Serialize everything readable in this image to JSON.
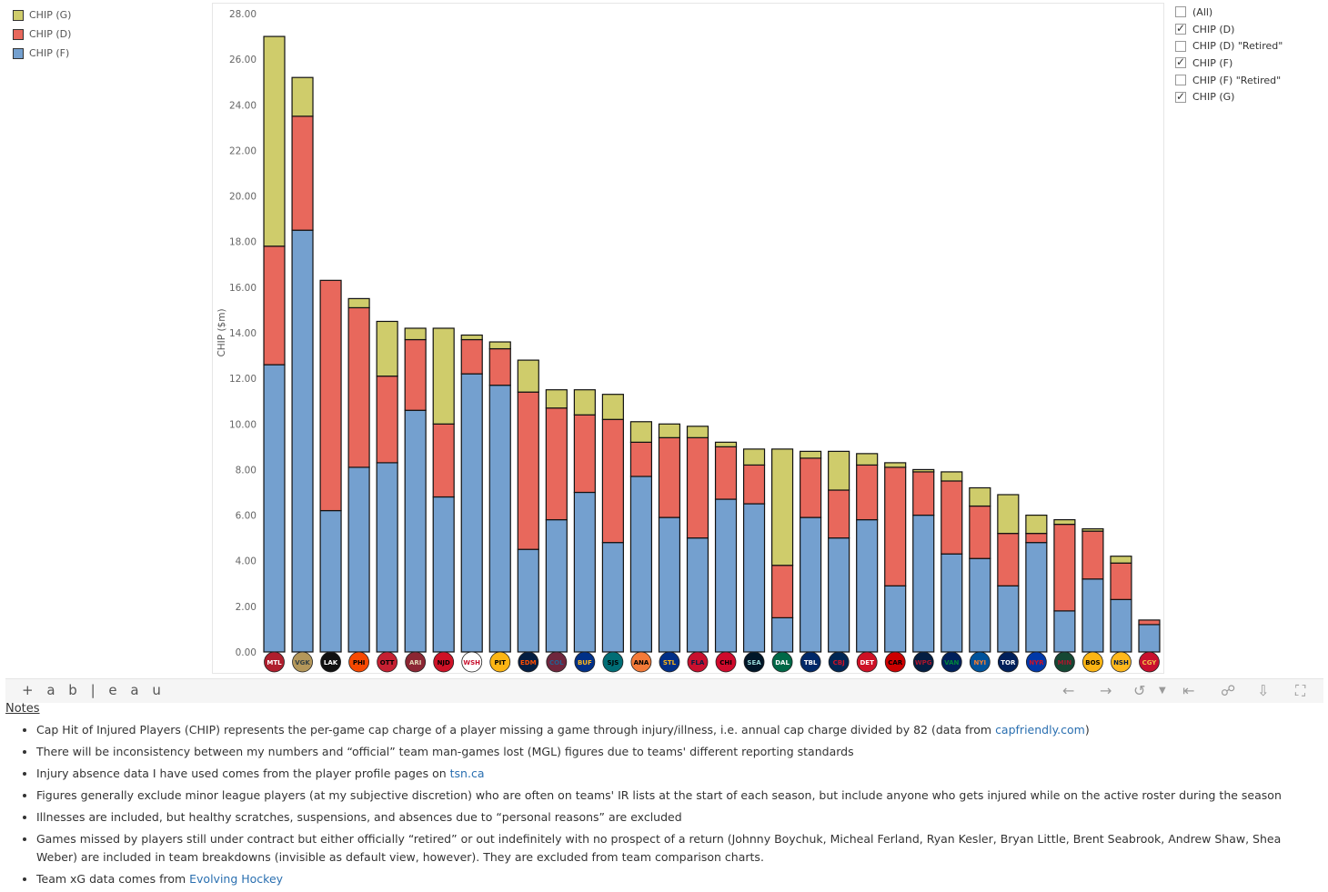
{
  "legend": [
    {
      "label": "CHIP (G)",
      "color": "#cfcc6b"
    },
    {
      "label": "CHIP (D)",
      "color": "#e8685c"
    },
    {
      "label": "CHIP (F)",
      "color": "#74a0cf"
    }
  ],
  "filter": [
    {
      "label": "(All)",
      "checked": false
    },
    {
      "label": "CHIP (D)",
      "checked": true
    },
    {
      "label": "CHIP (D) \"Retired\"",
      "checked": false
    },
    {
      "label": "CHIP (F)",
      "checked": true
    },
    {
      "label": "CHIP (F) \"Retired\"",
      "checked": false
    },
    {
      "label": "CHIP (G)",
      "checked": true
    }
  ],
  "chart_data": {
    "type": "bar",
    "stacked": true,
    "ylabel": "CHIP ($m)",
    "ylim": [
      0,
      28
    ],
    "yticks": [
      "0.00",
      "2.00",
      "4.00",
      "6.00",
      "8.00",
      "10.00",
      "12.00",
      "14.00",
      "16.00",
      "18.00",
      "20.00",
      "22.00",
      "24.00",
      "26.00",
      "28.00"
    ],
    "categories": [
      "Canadiens",
      "Golden Knights",
      "Kings",
      "Flyers",
      "Senators",
      "Coyotes",
      "Devils",
      "Capitals",
      "Penguins",
      "Oilers",
      "Avalanche",
      "Sabres",
      "Sharks",
      "Ducks",
      "Blues",
      "Panthers",
      "Blackhawks",
      "Kraken",
      "Stars",
      "Lightning",
      "Blue Jackets",
      "Red Wings",
      "Hurricanes",
      "Jets",
      "Canucks",
      "Islanders",
      "Maple Leafs",
      "Rangers",
      "Wild",
      "Bruins",
      "Predators",
      "Flames"
    ],
    "series": [
      {
        "name": "CHIP (F)",
        "color": "#74a0cf",
        "values": [
          12.6,
          18.5,
          6.2,
          8.1,
          8.3,
          10.6,
          6.8,
          12.2,
          11.7,
          4.5,
          5.8,
          7.0,
          4.8,
          7.7,
          5.9,
          5.0,
          6.7,
          6.5,
          1.5,
          5.9,
          5.0,
          5.8,
          2.9,
          6.0,
          4.3,
          4.1,
          2.9,
          4.8,
          1.8,
          3.2,
          2.3,
          1.2
        ]
      },
      {
        "name": "CHIP (D)",
        "color": "#e8685c",
        "values": [
          5.2,
          5.0,
          10.1,
          7.0,
          3.8,
          3.1,
          3.2,
          1.5,
          1.6,
          6.9,
          4.9,
          3.4,
          5.4,
          1.5,
          3.5,
          4.4,
          2.3,
          1.7,
          2.3,
          2.6,
          2.1,
          2.4,
          5.2,
          1.9,
          3.2,
          2.3,
          2.3,
          0.4,
          3.8,
          2.1,
          1.6,
          0.2
        ]
      },
      {
        "name": "CHIP (G)",
        "color": "#cfcc6b",
        "values": [
          9.2,
          1.7,
          0.0,
          0.4,
          2.4,
          0.5,
          4.2,
          0.2,
          0.3,
          1.4,
          0.8,
          1.1,
          1.1,
          0.9,
          0.6,
          0.5,
          0.2,
          0.7,
          5.1,
          0.3,
          1.7,
          0.5,
          0.2,
          0.1,
          0.4,
          0.8,
          1.7,
          0.8,
          0.2,
          0.1,
          0.3,
          0.0
        ]
      }
    ],
    "legend_position": "top-left"
  },
  "team_logos": [
    {
      "abbr": "MTL",
      "color": "#af1e2d",
      "text": "#ffffff"
    },
    {
      "abbr": "VGK",
      "color": "#b4975a",
      "text": "#333f42"
    },
    {
      "abbr": "LAK",
      "color": "#111111",
      "text": "#ffffff"
    },
    {
      "abbr": "PHI",
      "color": "#f74902",
      "text": "#000000"
    },
    {
      "abbr": "OTT",
      "color": "#c52032",
      "text": "#000000"
    },
    {
      "abbr": "ARI",
      "color": "#8c2633",
      "text": "#e2d6b5"
    },
    {
      "abbr": "NJD",
      "color": "#ce1126",
      "text": "#000000"
    },
    {
      "abbr": "WSH",
      "color": "#ffffff",
      "text": "#c8102e"
    },
    {
      "abbr": "PIT",
      "color": "#fcb514",
      "text": "#000000"
    },
    {
      "abbr": "EDM",
      "color": "#041e42",
      "text": "#ff4c00"
    },
    {
      "abbr": "COL",
      "color": "#6f263d",
      "text": "#236192"
    },
    {
      "abbr": "BUF",
      "color": "#003087",
      "text": "#ffb81c"
    },
    {
      "abbr": "SJS",
      "color": "#006d75",
      "text": "#000000"
    },
    {
      "abbr": "ANA",
      "color": "#f47a38",
      "text": "#000000"
    },
    {
      "abbr": "STL",
      "color": "#002f87",
      "text": "#fcb514"
    },
    {
      "abbr": "FLA",
      "color": "#c8102e",
      "text": "#041e42"
    },
    {
      "abbr": "CHI",
      "color": "#cf0a2c",
      "text": "#000000"
    },
    {
      "abbr": "SEA",
      "color": "#001628",
      "text": "#99d9d9"
    },
    {
      "abbr": "DAL",
      "color": "#006847",
      "text": "#ffffff"
    },
    {
      "abbr": "TBL",
      "color": "#002868",
      "text": "#ffffff"
    },
    {
      "abbr": "CBJ",
      "color": "#002654",
      "text": "#ce1126"
    },
    {
      "abbr": "DET",
      "color": "#ce1126",
      "text": "#ffffff"
    },
    {
      "abbr": "CAR",
      "color": "#cc0000",
      "text": "#000000"
    },
    {
      "abbr": "WPG",
      "color": "#041e42",
      "text": "#ac162c"
    },
    {
      "abbr": "VAN",
      "color": "#00205b",
      "text": "#00843d"
    },
    {
      "abbr": "NYI",
      "color": "#00539b",
      "text": "#f47d30"
    },
    {
      "abbr": "TOR",
      "color": "#00205b",
      "text": "#ffffff"
    },
    {
      "abbr": "NYR",
      "color": "#0038a8",
      "text": "#ce1126"
    },
    {
      "abbr": "MIN",
      "color": "#154734",
      "text": "#a6192e"
    },
    {
      "abbr": "BOS",
      "color": "#fcb514",
      "text": "#000000"
    },
    {
      "abbr": "NSH",
      "color": "#ffb81c",
      "text": "#041e42"
    },
    {
      "abbr": "CGY",
      "color": "#c8102e",
      "text": "#f1be48"
    }
  ],
  "toolbar": {
    "brand": "+ a b | e a u"
  },
  "notes": {
    "title": "Notes",
    "items": [
      {
        "text": "Cap Hit of Injured Players (CHIP) represents the per-game cap charge of a player missing a game through injury/illness, i.e. annual cap charge divided by 82 (data from ",
        "link": "capfriendly.com",
        "after": ")"
      },
      {
        "text": "There will be inconsistency between my numbers and “official” team man-games lost (MGL) figures due to teams' different reporting standards",
        "link": "",
        "after": ""
      },
      {
        "text": "Injury absence data I have used comes from the player profile pages on ",
        "link": "tsn.ca",
        "after": ""
      },
      {
        "text": "Figures generally exclude minor league players (at my subjective discretion) who are often on teams' IR lists at the start of each season, but include anyone who gets injured while on the active roster during the season",
        "link": "",
        "after": ""
      },
      {
        "text": "Illnesses are included, but healthy scratches, suspensions, and absences due to “personal reasons” are excluded",
        "link": "",
        "after": ""
      },
      {
        "text": "Games missed by players still under contract but either officially “retired” or out indefinitely with no prospect of a return (Johnny Boychuk, Micheal Ferland, Ryan Kesler, Bryan Little, Brent Seabrook, Andrew Shaw, Shea Weber) are included in team breakdowns (invisible as default view, however). They are excluded from team comparison charts.",
        "link": "",
        "after": ""
      },
      {
        "text": "Team xG data comes from ",
        "link": "Evolving Hockey",
        "after": ""
      }
    ]
  }
}
